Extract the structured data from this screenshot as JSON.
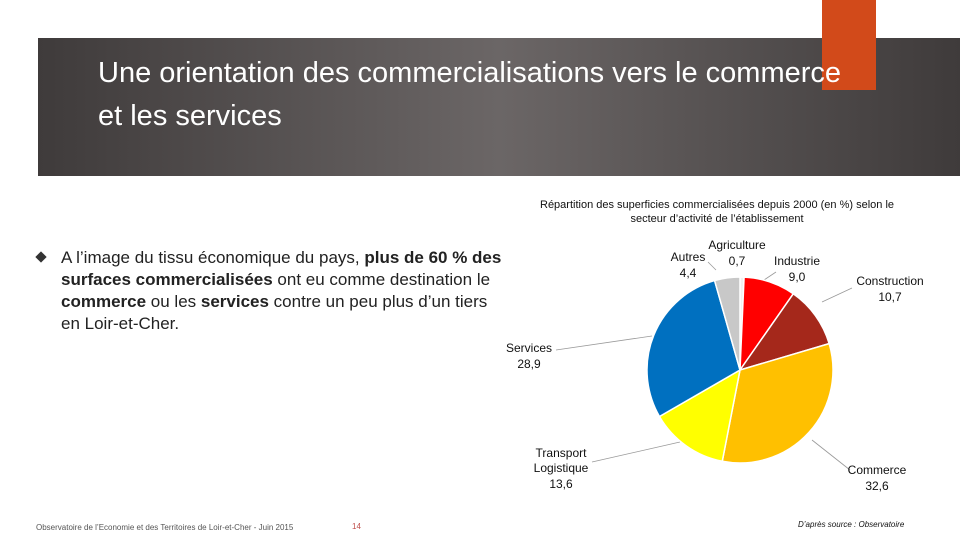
{
  "title": "Une orientation des commercialisations vers le commerce et les services",
  "bullet": [
    {
      "text": "A l’image du tissu économique du pays, ",
      "bold": false
    },
    {
      "text": "plus de 60 % des surfaces commercialisées",
      "bold": true
    },
    {
      "text": " ont eu comme destination le ",
      "bold": false
    },
    {
      "text": "commerce",
      "bold": true
    },
    {
      "text": " ou les ",
      "bold": false
    },
    {
      "text": "services",
      "bold": true
    },
    {
      "text": " contre un peu plus d’un tiers en Loir-et-Cher.",
      "bold": false
    }
  ],
  "footer": {
    "left": "Observatoire de l’Economie et des Territoires de Loir-et-Cher - Juin 2015",
    "page": "14",
    "source": "D’après source : Observatoire"
  },
  "chart_data": {
    "type": "pie",
    "title": "Répartition des superficies commercialisées depuis 2000 (en %) selon le secteur d’activité de l’établissement",
    "categories": [
      "Agriculture",
      "Industrie",
      "Construction",
      "Commerce",
      "Transport Logistique",
      "Services",
      "Autres"
    ],
    "values": [
      0.7,
      9.0,
      10.7,
      32.6,
      13.6,
      28.9,
      4.4
    ],
    "value_labels": [
      "0,7",
      "9,0",
      "10,7",
      "32,6",
      "13,6",
      "28,9",
      "4,4"
    ],
    "colors": [
      "#f2f2f2",
      "#ff0000",
      "#a5281b",
      "#ffc000",
      "#ffff00",
      "#0070c0",
      "#c8c8c8"
    ]
  }
}
